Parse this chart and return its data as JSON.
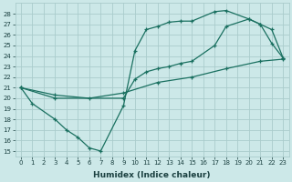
{
  "xlabel": "Humidex (Indice chaleur)",
  "bg_color": "#cce8e8",
  "grid_color": "#aacccc",
  "line_color": "#1a7060",
  "xlim": [
    -0.5,
    23.5
  ],
  "ylim": [
    14.5,
    29.0
  ],
  "xticks": [
    0,
    1,
    2,
    3,
    4,
    5,
    6,
    7,
    8,
    9,
    10,
    11,
    12,
    13,
    14,
    15,
    16,
    17,
    18,
    19,
    20,
    21,
    22,
    23
  ],
  "yticks": [
    15,
    16,
    17,
    18,
    19,
    20,
    21,
    22,
    23,
    24,
    25,
    26,
    27,
    28
  ],
  "line1_x": [
    0,
    3,
    6,
    9,
    12,
    15,
    18,
    21,
    23
  ],
  "line1_y": [
    21,
    20.3,
    20.0,
    20.5,
    21.5,
    22.0,
    22.8,
    23.5,
    23.7
  ],
  "line2_x": [
    0,
    1,
    3,
    4,
    5,
    6,
    7,
    9,
    10,
    11,
    12,
    13,
    14,
    15,
    17,
    18,
    20,
    21,
    22,
    23
  ],
  "line2_y": [
    21,
    19.5,
    18.0,
    17.0,
    16.3,
    15.3,
    15.0,
    19.3,
    24.5,
    26.5,
    26.8,
    27.2,
    27.3,
    27.3,
    28.2,
    28.3,
    27.5,
    27.0,
    25.2,
    23.8
  ],
  "line3_x": [
    0,
    3,
    9,
    10,
    11,
    12,
    13,
    14,
    15,
    17,
    18,
    20,
    21,
    22,
    23
  ],
  "line3_y": [
    21,
    20.0,
    20.0,
    21.8,
    22.5,
    22.8,
    23.0,
    23.3,
    23.5,
    25.0,
    26.8,
    27.5,
    27.0,
    26.5,
    23.8
  ]
}
